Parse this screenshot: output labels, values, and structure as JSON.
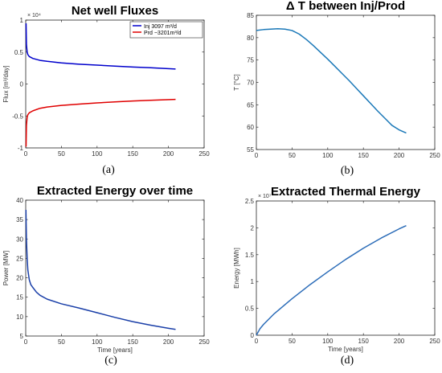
{
  "chart_data": [
    {
      "type": "line",
      "title": "Net well Fluxes",
      "xlabel": "",
      "ylabel": "Flux [m³/day]",
      "xlim": [
        0,
        250
      ],
      "ylim": [
        -1,
        1
      ],
      "y_multiplier": "× 10⁴",
      "xticks": [
        "0",
        "50",
        "100",
        "150",
        "200",
        "250"
      ],
      "yticks": [
        "-1",
        "-0.5",
        "0",
        "0.5",
        "1"
      ],
      "legend": "top-right",
      "caption": "(a)",
      "series": [
        {
          "name": "Inj 3097 m³/d",
          "color": "#0000cc",
          "x": [
            0.5,
            1,
            2,
            3,
            5,
            10,
            20,
            30,
            50,
            75,
            100,
            125,
            150,
            175,
            210
          ],
          "y": [
            0.95,
            0.62,
            0.5,
            0.46,
            0.43,
            0.4,
            0.37,
            0.355,
            0.33,
            0.31,
            0.295,
            0.28,
            0.265,
            0.255,
            0.235
          ]
        },
        {
          "name": "Prd −3201m³/d",
          "color": "#e00000",
          "x": [
            0.5,
            1,
            2,
            3,
            5,
            10,
            20,
            30,
            50,
            75,
            100,
            125,
            150,
            175,
            210
          ],
          "y": [
            -0.98,
            -0.65,
            -0.52,
            -0.48,
            -0.45,
            -0.42,
            -0.38,
            -0.36,
            -0.335,
            -0.315,
            -0.295,
            -0.28,
            -0.265,
            -0.255,
            -0.24
          ]
        }
      ]
    },
    {
      "type": "line",
      "title": "Δ T between Inj/Prod",
      "xlabel": "",
      "ylabel": "T [°C]",
      "xlim": [
        0,
        250
      ],
      "ylim": [
        55,
        85
      ],
      "xticks": [
        "0",
        "50",
        "100",
        "150",
        "200",
        "250"
      ],
      "yticks": [
        "55",
        "60",
        "65",
        "70",
        "75",
        "80",
        "85"
      ],
      "caption": "(b)",
      "series": [
        {
          "color": "#1a78b8",
          "x": [
            0,
            10,
            20,
            30,
            40,
            50,
            60,
            70,
            80,
            90,
            100,
            110,
            120,
            130,
            140,
            150,
            160,
            170,
            180,
            190,
            200,
            210
          ],
          "y": [
            81.6,
            81.8,
            81.9,
            82.0,
            81.9,
            81.6,
            80.8,
            79.6,
            78.2,
            76.7,
            75.2,
            73.6,
            72.0,
            70.4,
            68.7,
            67.0,
            65.3,
            63.6,
            62.0,
            60.4,
            59.4,
            58.7
          ]
        }
      ]
    },
    {
      "type": "line",
      "title": "Extracted Energy over time",
      "xlabel": "Time [years]",
      "ylabel": "Power [MW]",
      "xlim": [
        0,
        250
      ],
      "ylim": [
        5,
        40
      ],
      "xticks": [
        "0",
        "50",
        "100",
        "150",
        "200",
        "250"
      ],
      "yticks": [
        "5",
        "10",
        "15",
        "20",
        "25",
        "30",
        "35",
        "40"
      ],
      "caption": "(c)",
      "series": [
        {
          "color": "#1a3fa8",
          "x": [
            0.3,
            1,
            2,
            3,
            5,
            7,
            10,
            15,
            20,
            30,
            50,
            75,
            100,
            125,
            150,
            175,
            200,
            210
          ],
          "y": [
            37.5,
            30,
            25,
            22,
            19.5,
            18.3,
            17.5,
            16.3,
            15.5,
            14.5,
            13.3,
            12.2,
            11,
            9.8,
            8.7,
            7.8,
            7.0,
            6.7
          ]
        }
      ]
    },
    {
      "type": "line",
      "title": "Extracted Thermal Energy",
      "xlabel": "Time [years]",
      "ylabel": "Energy [MWh]",
      "xlim": [
        0,
        250
      ],
      "ylim": [
        0,
        2.5
      ],
      "y_multiplier": "× 10⁷",
      "xticks": [
        "0",
        "50",
        "100",
        "150",
        "200",
        "250"
      ],
      "yticks": [
        "0",
        "0.5",
        "1",
        "1.5",
        "2",
        "2.5"
      ],
      "caption": "(d)",
      "series": [
        {
          "color": "#2b6cb8",
          "x": [
            0,
            5,
            10,
            25,
            50,
            75,
            100,
            125,
            150,
            175,
            200,
            210
          ],
          "y": [
            0,
            0.12,
            0.2,
            0.4,
            0.68,
            0.94,
            1.18,
            1.41,
            1.62,
            1.81,
            1.98,
            2.04
          ]
        }
      ]
    }
  ]
}
